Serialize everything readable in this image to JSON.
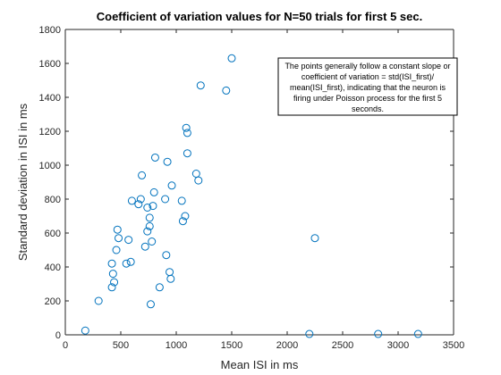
{
  "chart_data": {
    "type": "scatter",
    "title": "Coefficient of variation values for N=50 trials for first 5 sec.",
    "xlabel": "Mean ISI in ms",
    "ylabel": "Standard deviation in ISI in ms",
    "xlim": [
      0,
      3500
    ],
    "ylim": [
      0,
      1800
    ],
    "xticks": [
      "0",
      "500",
      "1000",
      "1500",
      "2000",
      "2500",
      "3000",
      "3500"
    ],
    "yticks": [
      "0",
      "200",
      "400",
      "600",
      "800",
      "1000",
      "1200",
      "1400",
      "1600",
      "1800"
    ],
    "grid": false,
    "marker": "circle",
    "marker_color": "#0072BD",
    "annotation": [
      "The points generally follow a constant slope or",
      "coefficient of variation = std(ISI_first)/",
      "mean(ISI_first), indicating that the neuron is",
      "firing under Poisson process for the first 5",
      "seconds."
    ],
    "points": [
      {
        "x": 180,
        "y": 25
      },
      {
        "x": 300,
        "y": 200
      },
      {
        "x": 420,
        "y": 420
      },
      {
        "x": 420,
        "y": 280
      },
      {
        "x": 430,
        "y": 360
      },
      {
        "x": 440,
        "y": 310
      },
      {
        "x": 460,
        "y": 500
      },
      {
        "x": 470,
        "y": 620
      },
      {
        "x": 480,
        "y": 570
      },
      {
        "x": 550,
        "y": 420
      },
      {
        "x": 570,
        "y": 560
      },
      {
        "x": 590,
        "y": 430
      },
      {
        "x": 600,
        "y": 790
      },
      {
        "x": 660,
        "y": 770
      },
      {
        "x": 680,
        "y": 800
      },
      {
        "x": 690,
        "y": 940
      },
      {
        "x": 720,
        "y": 520
      },
      {
        "x": 740,
        "y": 610
      },
      {
        "x": 740,
        "y": 750
      },
      {
        "x": 760,
        "y": 640
      },
      {
        "x": 760,
        "y": 690
      },
      {
        "x": 770,
        "y": 180
      },
      {
        "x": 780,
        "y": 550
      },
      {
        "x": 790,
        "y": 760
      },
      {
        "x": 800,
        "y": 840
      },
      {
        "x": 810,
        "y": 1045
      },
      {
        "x": 850,
        "y": 280
      },
      {
        "x": 900,
        "y": 800
      },
      {
        "x": 910,
        "y": 470
      },
      {
        "x": 920,
        "y": 1020
      },
      {
        "x": 940,
        "y": 370
      },
      {
        "x": 950,
        "y": 330
      },
      {
        "x": 960,
        "y": 880
      },
      {
        "x": 1050,
        "y": 790
      },
      {
        "x": 1060,
        "y": 670
      },
      {
        "x": 1080,
        "y": 700
      },
      {
        "x": 1090,
        "y": 1220
      },
      {
        "x": 1100,
        "y": 1070
      },
      {
        "x": 1100,
        "y": 1190
      },
      {
        "x": 1180,
        "y": 950
      },
      {
        "x": 1200,
        "y": 910
      },
      {
        "x": 1220,
        "y": 1470
      },
      {
        "x": 1450,
        "y": 1440
      },
      {
        "x": 1500,
        "y": 1630
      },
      {
        "x": 2200,
        "y": 5
      },
      {
        "x": 2250,
        "y": 570
      },
      {
        "x": 2820,
        "y": 5
      },
      {
        "x": 3180,
        "y": 5
      }
    ]
  }
}
